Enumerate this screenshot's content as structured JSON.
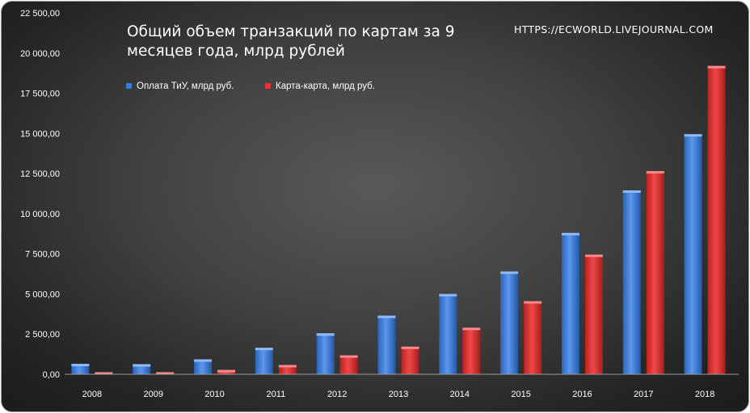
{
  "chart_data": {
    "type": "bar",
    "title": "Общий объем транзакций по картам за 9 месяцев года, млрд рублей",
    "watermark": "HTTPS://ECWORLD.LIVEJOURNAL.COM",
    "categories": [
      "2008",
      "2009",
      "2010",
      "2011",
      "2012",
      "2013",
      "2014",
      "2015",
      "2016",
      "2017",
      "2018"
    ],
    "series": [
      {
        "name": "Оплата ТиУ, млрд руб.",
        "color": "#3a7ad8",
        "values": [
          650,
          630,
          930,
          1650,
          2550,
          3650,
          5000,
          6400,
          8800,
          11450,
          14950
        ]
      },
      {
        "name": "Карта-карта, млрд руб.",
        "color": "#e03535",
        "values": [
          130,
          130,
          270,
          580,
          1180,
          1720,
          2900,
          4550,
          7450,
          12650,
          19200
        ]
      }
    ],
    "ylim": [
      0,
      22500
    ],
    "y_ticks": [
      "0,00",
      "2 500,00",
      "5 000,00",
      "7 500,00",
      "10 000,00",
      "12 500,00",
      "15 000,00",
      "17 500,00",
      "20 000,00",
      "22 500,00"
    ],
    "legend_position": "top-left",
    "grid": false
  }
}
